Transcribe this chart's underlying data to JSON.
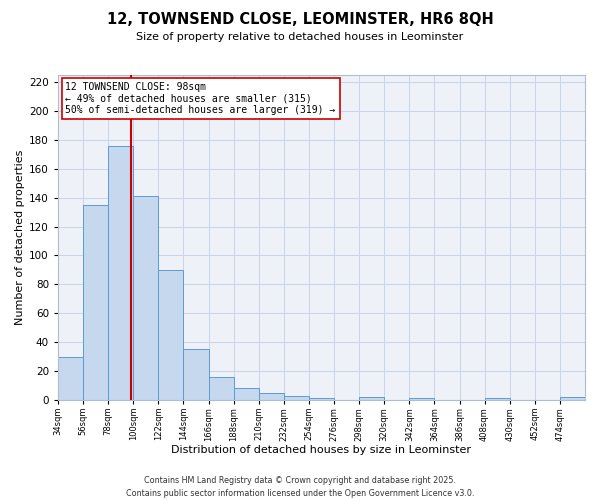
{
  "title": "12, TOWNSEND CLOSE, LEOMINSTER, HR6 8QH",
  "subtitle": "Size of property relative to detached houses in Leominster",
  "xlabel": "Distribution of detached houses by size in Leominster",
  "ylabel": "Number of detached properties",
  "bins": [
    34,
    56,
    78,
    100,
    122,
    144,
    166,
    188,
    210,
    232,
    254,
    276,
    298,
    320,
    342,
    364,
    386,
    408,
    430,
    452,
    474
  ],
  "counts": [
    30,
    135,
    176,
    141,
    90,
    35,
    16,
    8,
    5,
    3,
    1,
    0,
    2,
    0,
    1,
    0,
    0,
    1,
    0,
    0,
    2
  ],
  "bar_color": "#c5d8ed",
  "bar_edge_color": "#5b9bd5",
  "vline_x": 98,
  "vline_color": "#cc0000",
  "annotation_line1": "12 TOWNSEND CLOSE: 98sqm",
  "annotation_line2": "← 49% of detached houses are smaller (315)",
  "annotation_line3": "50% of semi-detached houses are larger (319) →",
  "annotation_box_color": "#ffffff",
  "annotation_box_edge": "#cc0000",
  "ylim": [
    0,
    225
  ],
  "yticks": [
    0,
    20,
    40,
    60,
    80,
    100,
    120,
    140,
    160,
    180,
    200,
    220
  ],
  "tick_labels": [
    "34sqm",
    "56sqm",
    "78sqm",
    "100sqm",
    "122sqm",
    "144sqm",
    "166sqm",
    "188sqm",
    "210sqm",
    "232sqm",
    "254sqm",
    "276sqm",
    "298sqm",
    "320sqm",
    "342sqm",
    "364sqm",
    "386sqm",
    "408sqm",
    "430sqm",
    "452sqm",
    "474sqm"
  ],
  "footer_line1": "Contains HM Land Registry data © Crown copyright and database right 2025.",
  "footer_line2": "Contains public sector information licensed under the Open Government Licence v3.0.",
  "background_color": "#eef2f8",
  "grid_color": "#c8d4e8",
  "bin_width": 22
}
